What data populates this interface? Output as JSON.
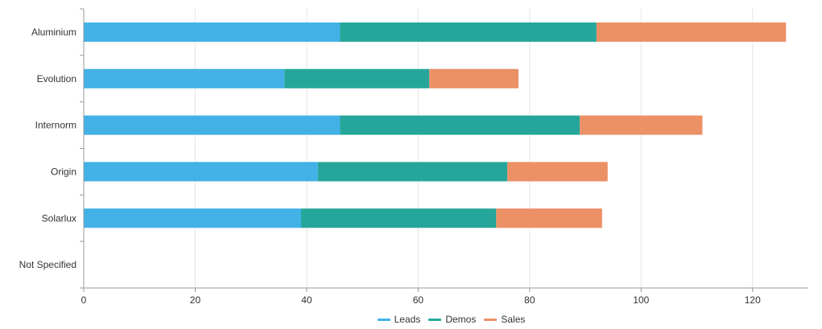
{
  "chart_data": {
    "type": "bar",
    "orientation": "horizontal",
    "stacked": true,
    "categories": [
      "Aluminium",
      "Evolution",
      "Internorm",
      "Origin",
      "Solarlux",
      "Not Specified"
    ],
    "series": [
      {
        "name": "Leads",
        "color": "#41b1e6",
        "values": [
          46,
          36,
          46,
          42,
          39,
          0
        ]
      },
      {
        "name": "Demos",
        "color": "#26a69a",
        "values": [
          46,
          26,
          43,
          34,
          35,
          0
        ]
      },
      {
        "name": "Sales",
        "color": "#ec9066",
        "values": [
          34,
          16,
          22,
          18,
          19,
          0
        ]
      }
    ],
    "xlim": [
      0,
      130
    ],
    "xticks": [
      0,
      20,
      40,
      60,
      80,
      100,
      120
    ],
    "grid": true,
    "legend_position": "bottom"
  }
}
